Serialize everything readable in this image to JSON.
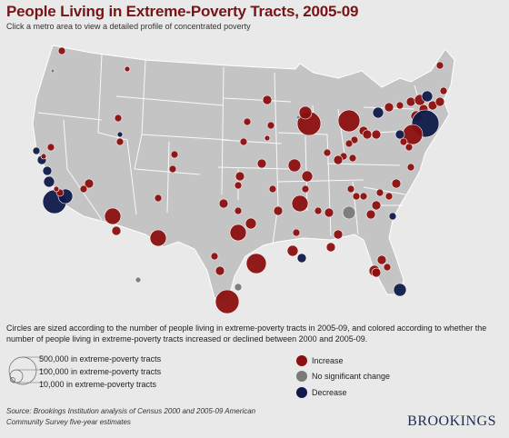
{
  "header": {
    "title": "People Living in Extreme-Poverty Tracts, 2005-09",
    "subtitle": "Click a metro area to view a detailed profile of concentrated poverty"
  },
  "colors": {
    "increase": "#8c0f0f",
    "no_change": "#7a7a7a",
    "decrease": "#101a4a",
    "land": "#c4c4c4",
    "border": "#ffffff",
    "background": "#e9e9e9",
    "title": "#7a1414"
  },
  "description": "Circles are sized according to the number of people living in extreme-poverty tracts in 2005-09, and colored according to whether the number of people living in extreme-poverty tracts increased or declined between 2000 and 2005-09.",
  "size_legend": [
    {
      "label": "500,000 in extreme-poverty tracts",
      "value": 500000
    },
    {
      "label": "100,000 in extreme-poverty tracts",
      "value": 100000
    },
    {
      "label": "10,000 in extreme-poverty tracts",
      "value": 10000
    }
  ],
  "color_legend": [
    {
      "label": "Increase",
      "key": "increase"
    },
    {
      "label": "No significant change",
      "key": "no_change"
    },
    {
      "label": "Decrease",
      "key": "decrease"
    }
  ],
  "source": "Source: Brookings Institution analysis of Census 2000 and 2005-09 American Community Survey five-year estimates",
  "brand": "BROOKINGS"
}
